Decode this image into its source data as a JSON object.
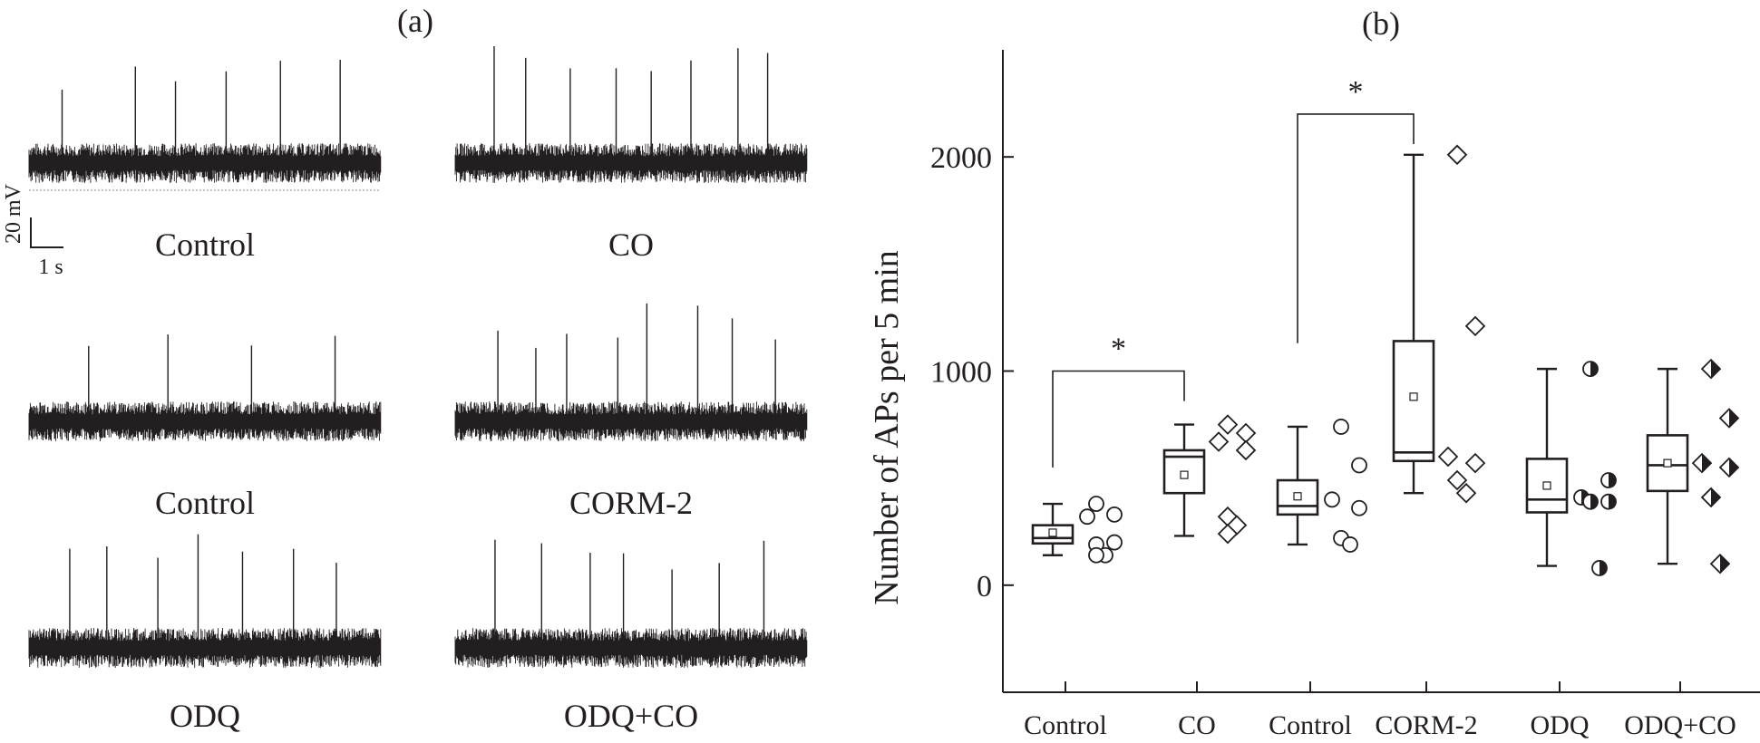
{
  "panel_a": {
    "label": "(a)",
    "scale_bar": {
      "voltage": "20 mV",
      "time": "1 s"
    },
    "traces": [
      {
        "label": "Control",
        "spikes": 6
      },
      {
        "label": "CO",
        "spikes": 8
      },
      {
        "label": "Control",
        "spikes": 4
      },
      {
        "label": "CORM-2",
        "spikes": 8
      },
      {
        "label": "ODQ",
        "spikes": 7
      },
      {
        "label": "ODQ+CO",
        "spikes": 7
      }
    ]
  },
  "panel_b": {
    "label": "(b)"
  },
  "chart_data": {
    "type": "box",
    "ylabel": "Number of APs per 5 min",
    "ylim": [
      -500,
      2500
    ],
    "yticks": [
      0,
      1000,
      2000
    ],
    "categories": [
      "Control",
      "CO",
      "Control",
      "CORM-2",
      "ODQ",
      "ODQ+CO"
    ],
    "markers": [
      "circle",
      "diamond",
      "circle",
      "diamond",
      "half-circle",
      "half-diamond"
    ],
    "boxes": [
      {
        "whisker_low": 140,
        "q1": 195,
        "median": 220,
        "q3": 280,
        "whisker_high": 380,
        "mean": 245,
        "points": [
          380,
          330,
          320,
          200,
          190,
          140,
          140
        ]
      },
      {
        "whisker_low": 230,
        "q1": 430,
        "median": 600,
        "q3": 630,
        "whisker_high": 750,
        "mean": 515,
        "points": [
          750,
          710,
          670,
          630,
          320,
          280,
          240
        ]
      },
      {
        "whisker_low": 190,
        "q1": 330,
        "median": 370,
        "q3": 490,
        "whisker_high": 740,
        "mean": 415,
        "points": [
          740,
          560,
          400,
          360,
          220,
          190
        ]
      },
      {
        "whisker_low": 430,
        "q1": 580,
        "median": 620,
        "q3": 1140,
        "whisker_high": 2010,
        "mean": 880,
        "points": [
          2010,
          1210,
          600,
          570,
          490,
          430
        ]
      },
      {
        "whisker_low": 90,
        "q1": 340,
        "median": 400,
        "q3": 590,
        "whisker_high": 1010,
        "mean": 465,
        "points": [
          1010,
          490,
          410,
          390,
          390,
          80
        ]
      },
      {
        "whisker_low": 100,
        "q1": 440,
        "median": 560,
        "q3": 700,
        "whisker_high": 1010,
        "mean": 570,
        "points": [
          1010,
          780,
          570,
          550,
          410,
          100
        ]
      }
    ],
    "significance": [
      {
        "pair": [
          0,
          1
        ],
        "label": "*"
      },
      {
        "pair": [
          2,
          3
        ],
        "label": "*"
      }
    ]
  }
}
